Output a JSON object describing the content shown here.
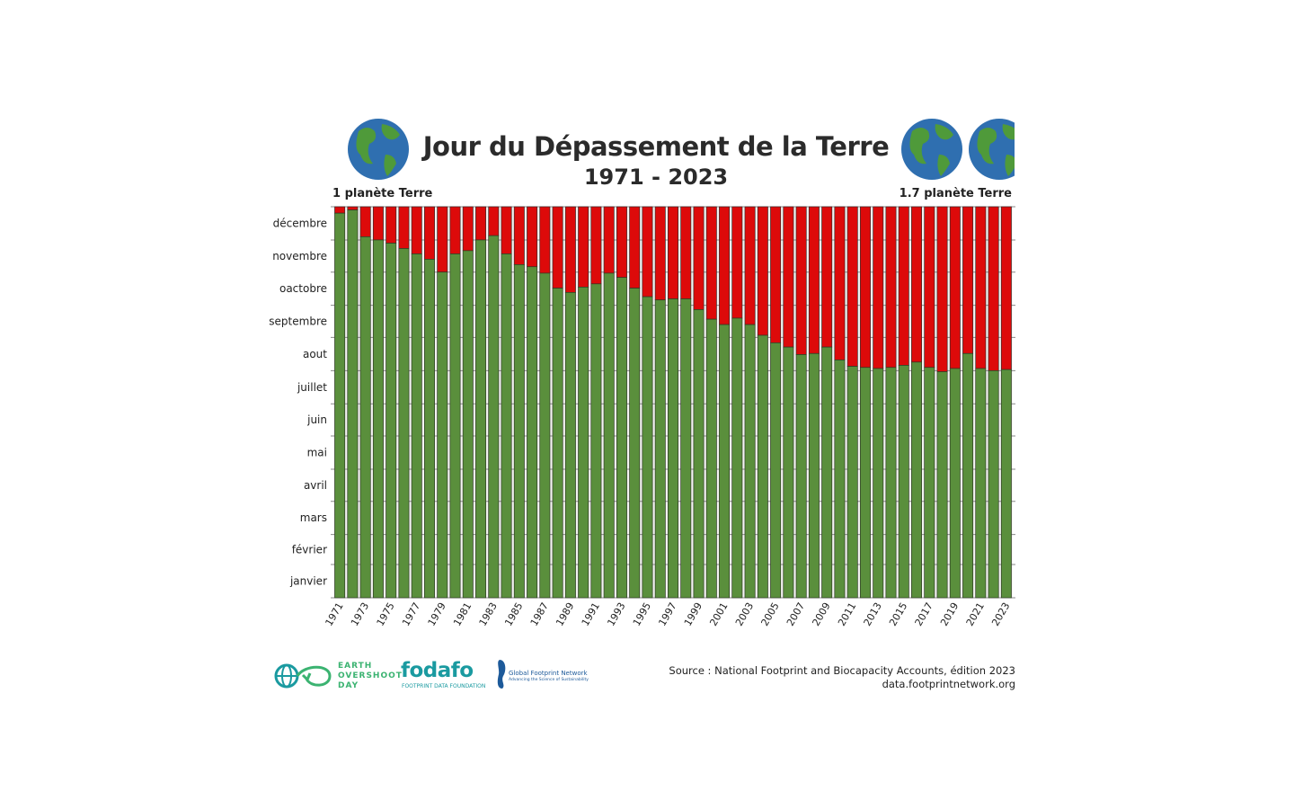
{
  "header": {
    "title": "Jour du Dépassement de la Terre",
    "subtitle": "1971 - 2023",
    "left_label": "1 planète Terre",
    "right_label": "1.7 planète Terre"
  },
  "colors": {
    "overshoot": "#dd0a0a",
    "within": "#5a8f3c",
    "globe_ocean": "#2f6fb0",
    "globe_land": "#4f9a3a"
  },
  "chart_data": {
    "type": "bar",
    "stacked": true,
    "title": "Jour du Dépassement de la Terre",
    "subtitle": "1971 - 2023",
    "y_axis": {
      "type": "date-of-year",
      "range": [
        "01-01",
        "12-31"
      ],
      "tick_labels": [
        "janvier",
        "février",
        "mars",
        "avril",
        "mai",
        "juin",
        "juillet",
        "aout",
        "septembre",
        "oactobre",
        "novembre",
        "décembre"
      ]
    },
    "x_tick_labels": [
      "1971",
      "1973",
      "1975",
      "1977",
      "1979",
      "1981",
      "1983",
      "1985",
      "1987",
      "1989",
      "1991",
      "1993",
      "1995",
      "1997",
      "1999",
      "2001",
      "2003",
      "2005",
      "2007",
      "2009",
      "2011",
      "2013",
      "2015",
      "2017",
      "2019",
      "2021",
      "2023"
    ],
    "grid": true,
    "categories": [
      "1971",
      "1972",
      "1973",
      "1974",
      "1975",
      "1976",
      "1977",
      "1978",
      "1979",
      "1980",
      "1981",
      "1982",
      "1983",
      "1984",
      "1985",
      "1986",
      "1987",
      "1988",
      "1989",
      "1990",
      "1991",
      "1992",
      "1993",
      "1994",
      "1995",
      "1996",
      "1997",
      "1998",
      "1999",
      "2000",
      "2001",
      "2002",
      "2003",
      "2004",
      "2005",
      "2006",
      "2007",
      "2008",
      "2009",
      "2010",
      "2011",
      "2012",
      "2013",
      "2014",
      "2015",
      "2016",
      "2017",
      "2018",
      "2019",
      "2020",
      "2021",
      "2022",
      "2023"
    ],
    "overshoot_day": [
      "12-25",
      "12-28",
      "12-03",
      "11-30",
      "11-27",
      "11-22",
      "11-17",
      "11-12",
      "10-31",
      "11-17",
      "11-20",
      "11-30",
      "12-04",
      "11-17",
      "11-07",
      "11-05",
      "10-30",
      "10-16",
      "10-12",
      "10-17",
      "10-20",
      "10-30",
      "10-26",
      "10-16",
      "10-08",
      "10-05",
      "10-06",
      "10-06",
      "09-26",
      "09-17",
      "09-12",
      "09-18",
      "09-12",
      "09-02",
      "08-26",
      "08-22",
      "08-15",
      "08-16",
      "08-22",
      "08-10",
      "08-04",
      "08-03",
      "08-02",
      "08-03",
      "08-05",
      "08-08",
      "08-03",
      "07-30",
      "08-02",
      "08-16",
      "08-02",
      "07-31",
      "08-01"
    ]
  },
  "footer": {
    "eod_logo": [
      "EARTH",
      "OVERSHOOT",
      "DAY"
    ],
    "fodafo_logo": "fodafo",
    "fodafo_sub": "FOOTPRINT DATA FOUNDATION",
    "gfn_logo": "Global Footprint Network",
    "gfn_tagline": "Advancing the Science of Sustainability",
    "source": "Source : National Footprint and Biocapacity Accounts, édition 2023",
    "url": "data.footprintnetwork.org"
  }
}
